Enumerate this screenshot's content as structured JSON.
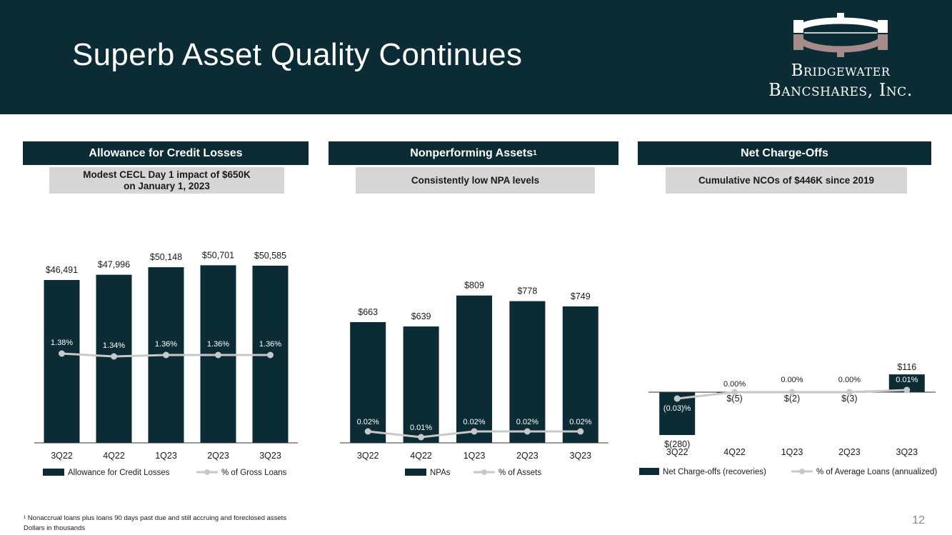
{
  "header": {
    "title": "Superb Asset Quality Continues",
    "logo_line1": "Bridgewater",
    "logo_line2": "Bancshares, Inc."
  },
  "panels": [
    {
      "title": "Allowance for Credit Losses",
      "subtitle_line1": "Modest CECL Day 1 impact of $650K",
      "subtitle_line2": "on January 1, 2023"
    },
    {
      "title": "Nonperforming Assets",
      "title_sup": "1",
      "subtitle_line1": "Consistently low NPA levels"
    },
    {
      "title": "Net Charge-Offs",
      "subtitle_line1": "Cumulative NCOs of $446K since 2019"
    }
  ],
  "colors": {
    "bar": "#0b2c35",
    "line": "#c8c8c8",
    "axis": "#333333"
  },
  "chart_data": [
    {
      "type": "bar",
      "categories": [
        "3Q22",
        "4Q22",
        "1Q23",
        "2Q23",
        "3Q23"
      ],
      "series": [
        {
          "name": "Allowance for Credit Losses",
          "values": [
            46491,
            47996,
            50148,
            50701,
            50585
          ],
          "labels": [
            "$46,491",
            "$47,996",
            "$50,148",
            "$50,701",
            "$50,585"
          ]
        },
        {
          "name": "% of Gross Loans",
          "type": "line",
          "values": [
            1.38,
            1.34,
            1.36,
            1.36,
            1.36
          ],
          "labels": [
            "1.38%",
            "1.34%",
            "1.36%",
            "1.36%",
            "1.36%"
          ]
        }
      ],
      "ylim": [
        0,
        52000
      ],
      "y2lim": [
        0,
        2.5
      ],
      "legend": [
        "Allowance for Credit Losses",
        "% of Gross Loans"
      ]
    },
    {
      "type": "bar",
      "categories": [
        "3Q22",
        "4Q22",
        "1Q23",
        "2Q23",
        "3Q23"
      ],
      "series": [
        {
          "name": "NPAs",
          "values": [
            663,
            639,
            809,
            778,
            749
          ],
          "labels": [
            "$663",
            "$639",
            "$809",
            "$778",
            "$749"
          ]
        },
        {
          "name": "% of Assets",
          "type": "line",
          "values": [
            0.02,
            0.01,
            0.02,
            0.02,
            0.02
          ],
          "labels": [
            "0.02%",
            "0.01%",
            "0.02%",
            "0.02%",
            "0.02%"
          ]
        }
      ],
      "ylim": [
        0,
        1000
      ],
      "y2lim": [
        0,
        0.25
      ],
      "legend": [
        "NPAs",
        "% of Assets"
      ]
    },
    {
      "type": "bar",
      "categories": [
        "3Q22",
        "4Q22",
        "1Q23",
        "2Q23",
        "3Q23"
      ],
      "series": [
        {
          "name": "Net Charge-offs (recoveries)",
          "values": [
            -280,
            -5,
            -2,
            -3,
            116
          ],
          "labels": [
            "$(280)",
            "$(5)",
            "$(2)",
            "$(3)",
            "$116"
          ]
        },
        {
          "name": "% of Average Loans (annualized)",
          "type": "line",
          "values": [
            -0.03,
            0.0,
            0.0,
            0.0,
            0.01
          ],
          "labels": [
            "(0.03)%",
            "0.00%",
            "0.00%",
            "0.00%",
            "0.01%"
          ]
        }
      ],
      "ylim": [
        -300,
        1000
      ],
      "y2lim": [
        -0.3,
        1.0
      ],
      "legend": [
        "Net Charge-offs (recoveries)",
        "% of Average Loans (annualized)"
      ]
    }
  ],
  "footnotes": {
    "note1": "¹ Nonaccrual loans plus loans 90 days past due and still accruing and foreclosed assets",
    "note2": "Dollars in thousands"
  },
  "page_number": "12"
}
